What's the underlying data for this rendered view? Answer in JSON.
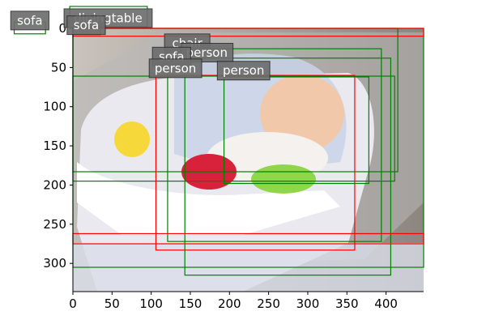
{
  "chart_data": {
    "type": "image-detections",
    "title": "",
    "xlabel": "",
    "ylabel": "",
    "xlim": [
      0,
      448
    ],
    "ylim": [
      336,
      0
    ],
    "x_ticks": [
      0,
      50,
      100,
      150,
      200,
      250,
      300,
      350,
      400
    ],
    "y_ticks": [
      0,
      50,
      100,
      150,
      200,
      250,
      300
    ],
    "legend": [],
    "image_description": "Smiling baby reclining in a white and blue bouncer seat on a grey sofa, with a yellow plush chick, a red ladybug toy and a green plush frog on the seat tray",
    "colors": {
      "red": "#ff0000",
      "green": "#008000",
      "label_bg": "#6e6e6e"
    },
    "boxes": [
      {
        "label": "sofa",
        "color": "green",
        "x0": -75,
        "y0": -8,
        "x1": -35,
        "y1": 7
      },
      {
        "label": "diningtable",
        "color": "green",
        "x0": -4,
        "y0": -28,
        "x1": 95,
        "y1": -2
      },
      {
        "label": "sofa",
        "color": "green",
        "x0": 0,
        "y0": -2,
        "x1": 35,
        "y1": 8
      },
      {
        "label": "chair",
        "color": "green",
        "x0": 0,
        "y0": 0,
        "x1": 415,
        "y1": 183
      },
      {
        "label": "sofa",
        "color": "green",
        "x0": 0,
        "y0": 0,
        "x1": 448,
        "y1": 305
      },
      {
        "label": "person",
        "color": "green",
        "x0": 0,
        "y0": 61,
        "x1": 411,
        "y1": 195
      },
      {
        "label": "person",
        "color": "red",
        "x0": 106,
        "y0": 60,
        "x1": 360,
        "y1": 283
      },
      {
        "label": "person",
        "color": "green",
        "x0": 121,
        "y0": 26,
        "x1": 394,
        "y1": 272
      },
      {
        "label": "person",
        "color": "green",
        "x0": 143,
        "y0": 38,
        "x1": 406,
        "y1": 315
      },
      {
        "label": "person",
        "color": "green",
        "x0": 193,
        "y0": 62,
        "x1": 378,
        "y1": 198
      },
      {
        "label": "person",
        "color": "red",
        "x0": 0,
        "y0": 262,
        "x1": 448,
        "y1": 275
      },
      {
        "label": "chair",
        "color": "red",
        "x0": 0,
        "y0": 0,
        "x1": 448,
        "y1": 10
      }
    ],
    "labels": [
      {
        "text": "sofa",
        "x": -55,
        "y": -10
      },
      {
        "text": "diningtable",
        "x": 45,
        "y": -13
      },
      {
        "text": "sofa",
        "x": 17,
        "y": -4
      },
      {
        "text": "chair",
        "x": 146,
        "y": 19
      },
      {
        "text": "person",
        "x": 171,
        "y": 31
      },
      {
        "text": "sofa",
        "x": 126,
        "y": 36
      },
      {
        "text": "person",
        "x": 131,
        "y": 51
      },
      {
        "text": "person",
        "x": 218,
        "y": 54
      }
    ]
  }
}
